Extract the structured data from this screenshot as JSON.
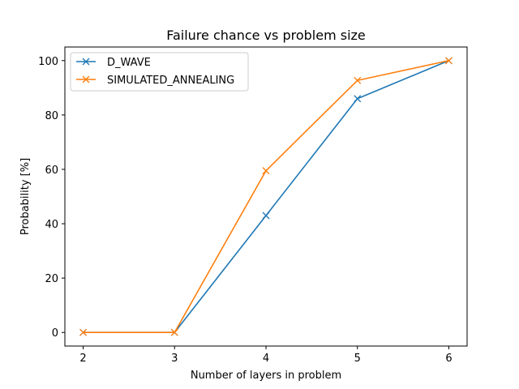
{
  "chart_data": {
    "type": "line",
    "title": "Failure chance vs problem size",
    "xlabel": "Number of layers in problem",
    "ylabel": "Probability [%]",
    "x": [
      2,
      3,
      4,
      5,
      6
    ],
    "x_ticks": [
      2,
      3,
      4,
      5,
      6
    ],
    "y_ticks": [
      0,
      20,
      40,
      60,
      80,
      100
    ],
    "xlim": [
      1.8,
      6.2
    ],
    "ylim": [
      -5,
      105
    ],
    "grid": false,
    "legend_position": "top-left",
    "marker": "x",
    "series": [
      {
        "name": "D_WAVE",
        "color": "#1f77b4",
        "values": [
          0,
          0,
          43,
          86,
          100
        ]
      },
      {
        "name": "SIMULATED_ANNEALING",
        "color": "#ff7f0e",
        "values": [
          0,
          0,
          59.5,
          92.7,
          100
        ]
      }
    ]
  }
}
